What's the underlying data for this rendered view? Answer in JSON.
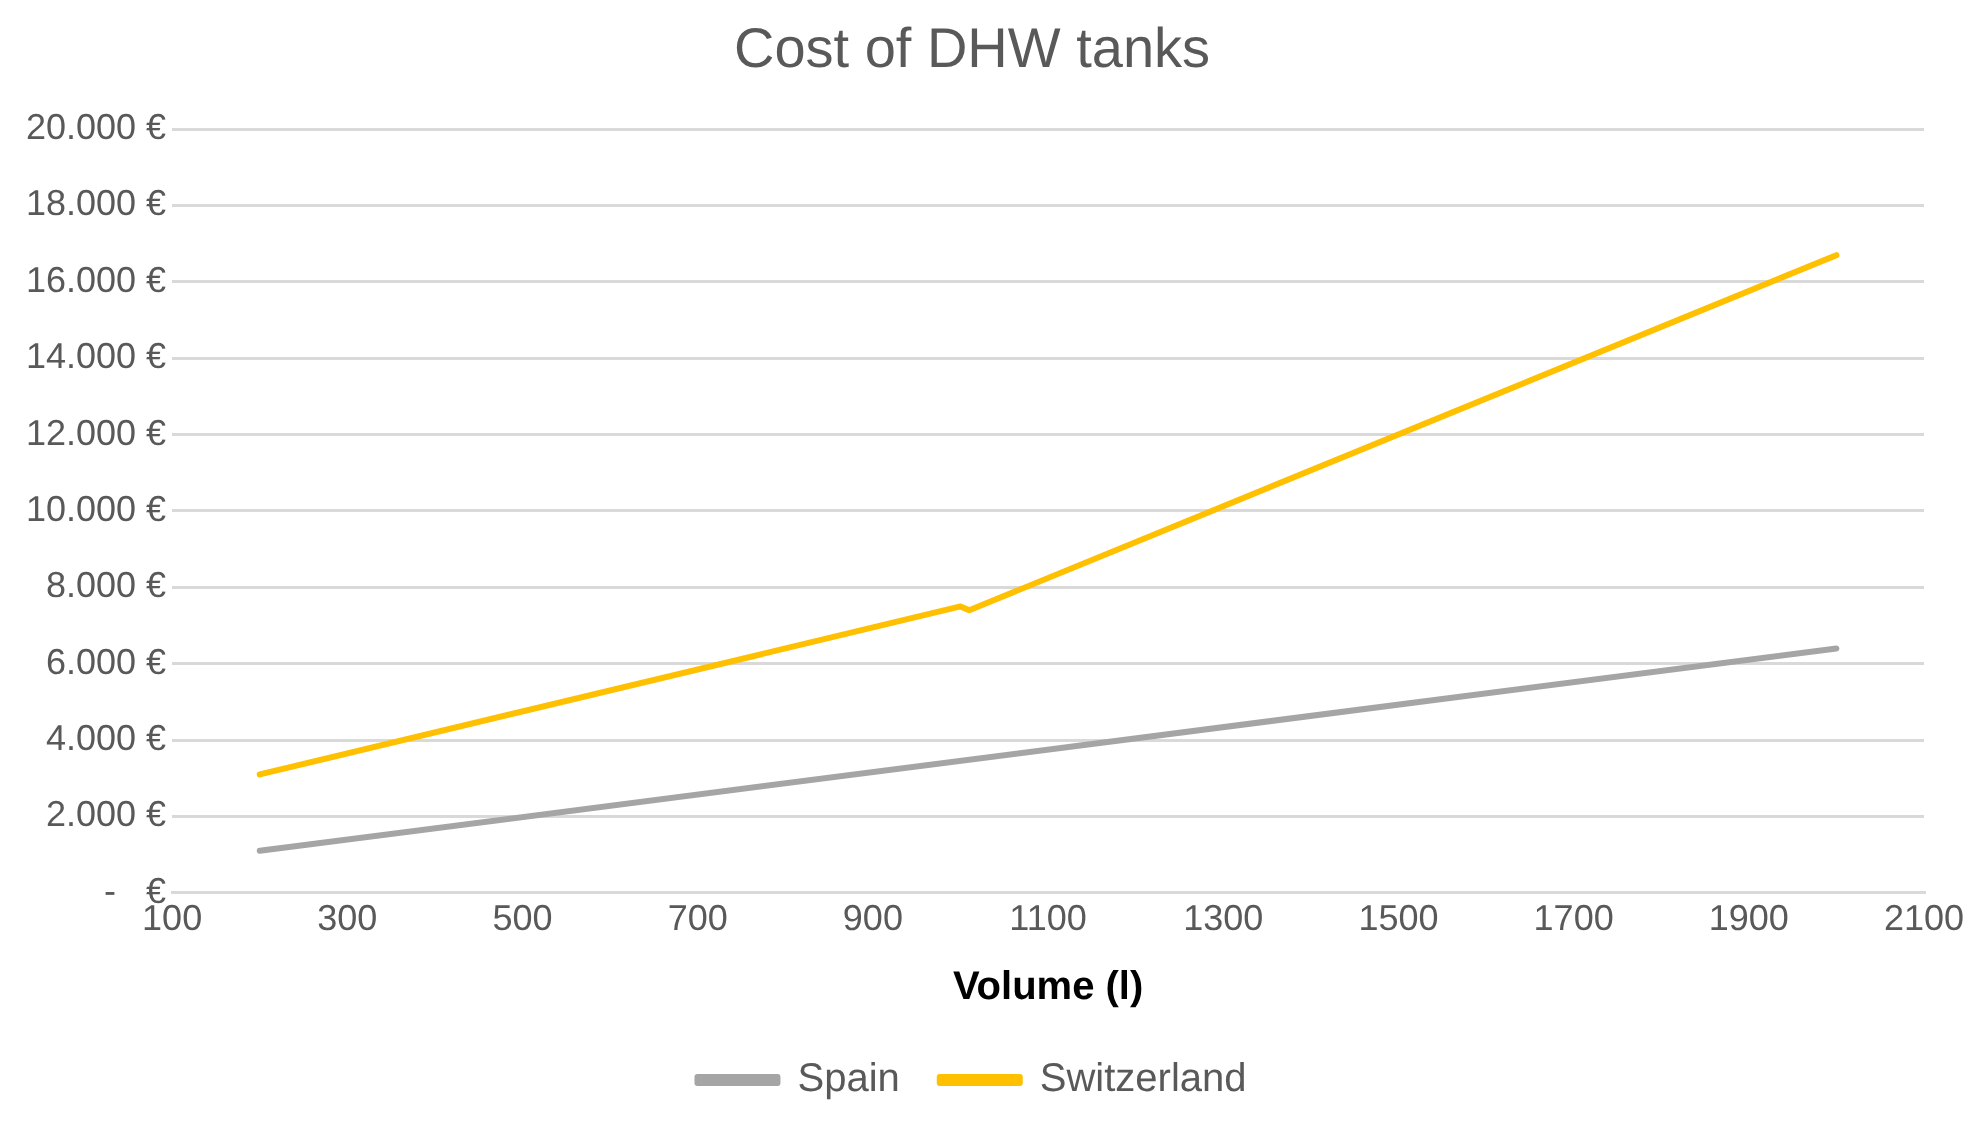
{
  "chart_data": {
    "type": "line",
    "title": "Cost of DHW tanks",
    "xlabel": "Volume (l)",
    "xlim": [
      100,
      2100
    ],
    "xticks": [
      100,
      300,
      500,
      700,
      900,
      1100,
      1300,
      1500,
      1700,
      1900,
      2100
    ],
    "ylim": [
      0,
      20000
    ],
    "yticks": [
      {
        "value": 0,
        "label": "-   €"
      },
      {
        "value": 2000,
        "label": "2.000 €"
      },
      {
        "value": 4000,
        "label": "4.000 €"
      },
      {
        "value": 6000,
        "label": "6.000 €"
      },
      {
        "value": 8000,
        "label": "8.000 €"
      },
      {
        "value": 10000,
        "label": "10.000 €"
      },
      {
        "value": 12000,
        "label": "12.000 €"
      },
      {
        "value": 14000,
        "label": "14.000 €"
      },
      {
        "value": 16000,
        "label": "16.000 €"
      },
      {
        "value": 18000,
        "label": "18.000 €"
      },
      {
        "value": 20000,
        "label": "20.000 €"
      }
    ],
    "grid": "y",
    "legend": "bottom",
    "marker": "none",
    "line_style": "solid",
    "series": [
      {
        "name": "Spain",
        "color": "#a5a5a5",
        "x": [
          200,
          2000
        ],
        "values": [
          1100,
          6400
        ]
      },
      {
        "name": "Switzerland",
        "color": "#ffc000",
        "x": [
          200,
          1000,
          1010,
          2000
        ],
        "values": [
          3100,
          7500,
          7400,
          16700
        ]
      }
    ]
  }
}
